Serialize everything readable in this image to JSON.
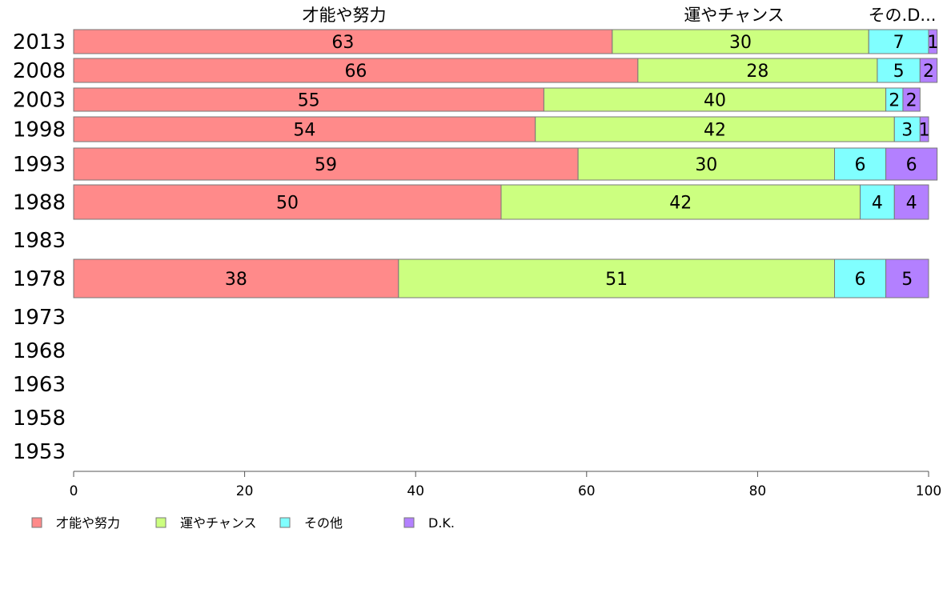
{
  "chart_data": {
    "type": "bar",
    "orientation": "horizontal",
    "stacked": true,
    "categories": [
      "2013",
      "2008",
      "2003",
      "1998",
      "1993",
      "1988",
      "1983",
      "1978",
      "1973",
      "1968",
      "1963",
      "1958",
      "1953"
    ],
    "series": [
      {
        "name": "才能や努力",
        "color": "#ff8a8a",
        "values": [
          63,
          66,
          55,
          54,
          59,
          50,
          null,
          38,
          null,
          null,
          null,
          null,
          null
        ]
      },
      {
        "name": "運やチャンス",
        "color": "#ccff80",
        "values": [
          30,
          28,
          40,
          42,
          30,
          42,
          null,
          51,
          null,
          null,
          null,
          null,
          null
        ]
      },
      {
        "name": "その他",
        "color": "#80ffff",
        "values": [
          7,
          5,
          2,
          3,
          6,
          4,
          null,
          6,
          null,
          null,
          null,
          null,
          null
        ]
      },
      {
        "name": "D.K.",
        "color": "#b380ff",
        "values": [
          1,
          2,
          2,
          1,
          6,
          4,
          null,
          5,
          null,
          null,
          null,
          null,
          null
        ]
      }
    ],
    "column_headers": [
      "才能や努力",
      "運やチャンス",
      "その.D..."
    ],
    "xlim": [
      0,
      100
    ],
    "xticks": [
      "0",
      "20",
      "40",
      "60",
      "80",
      "100"
    ],
    "grid": false,
    "legend": "bottom-left"
  }
}
